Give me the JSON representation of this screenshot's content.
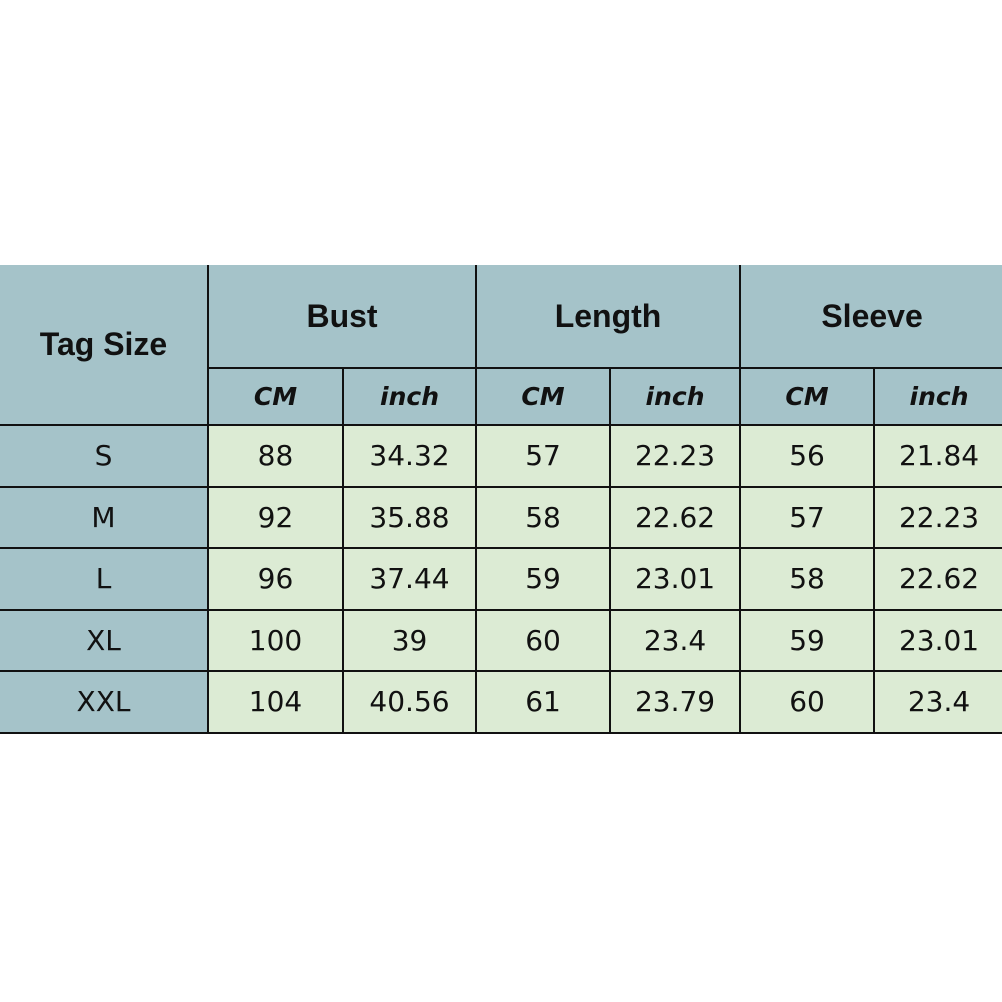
{
  "header": {
    "tag_size": "Tag Size",
    "groups": [
      "Bust",
      "Length",
      "Sleeve"
    ],
    "units": [
      "CM",
      "inch",
      "CM",
      "inch",
      "CM",
      "inch"
    ]
  },
  "rows": [
    {
      "size": "S",
      "values": [
        "88",
        "34.32",
        "57",
        "22.23",
        "56",
        "21.84"
      ]
    },
    {
      "size": "M",
      "values": [
        "92",
        "35.88",
        "58",
        "22.62",
        "57",
        "22.23"
      ]
    },
    {
      "size": "L",
      "values": [
        "96",
        "37.44",
        "59",
        "23.01",
        "58",
        "22.62"
      ]
    },
    {
      "size": "XL",
      "values": [
        "100",
        "39",
        "60",
        "23.4",
        "59",
        "23.01"
      ]
    },
    {
      "size": "XXL",
      "values": [
        "104",
        "40.56",
        "61",
        "23.79",
        "60",
        "23.4"
      ]
    }
  ],
  "colors": {
    "header": "#a5c3c9",
    "cell": "#dcebd4",
    "border": "#111111"
  }
}
